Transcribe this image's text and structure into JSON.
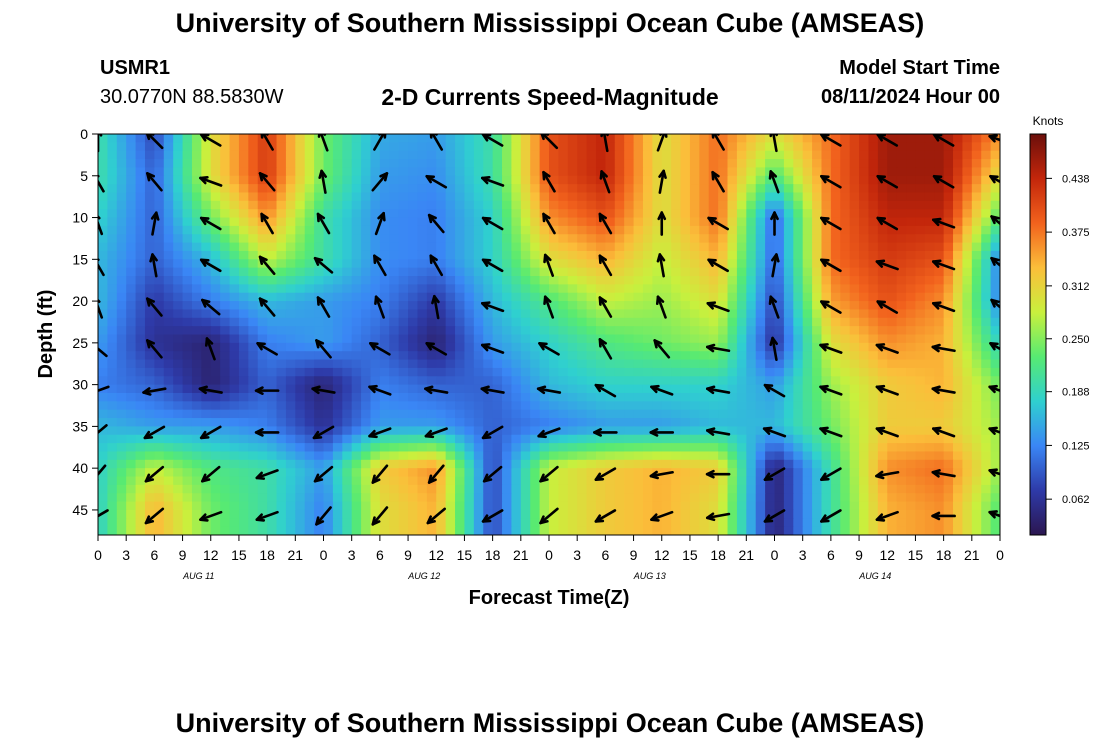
{
  "header": {
    "title": "University of Southern Mississippi Ocean Cube (AMSEAS)",
    "station_id": "USMR1",
    "station_coords": "30.0770N  88.5830W",
    "chart_subtitle": "2-D Currents Speed-Magnitude",
    "model_start_label": "Model Start Time",
    "model_start_value": "08/11/2024 Hour 00"
  },
  "footer": {
    "title": "University of Southern Mississippi Ocean Cube (AMSEAS)"
  },
  "colors": {
    "scale": [
      "#2b1650",
      "#2e3aa8",
      "#3a86f5",
      "#2fd0cf",
      "#57ea72",
      "#c9f03d",
      "#fbbe3a",
      "#f2621d",
      "#c3260b",
      "#6b0f0b"
    ],
    "arrow": "#000000"
  },
  "chart_data": {
    "type": "heatmap",
    "title": "2-D Currents Speed-Magnitude",
    "xlabel": "Forecast Time(Z)",
    "ylabel": "Depth (ft)",
    "ylim": [
      0,
      48
    ],
    "xlim_hours": [
      0,
      96
    ],
    "y_ticks": [
      0,
      5,
      10,
      15,
      20,
      25,
      30,
      35,
      40,
      45
    ],
    "x_tick_labels": [
      "0",
      "3",
      "6",
      "9",
      "12",
      "15",
      "18",
      "21",
      "0",
      "3",
      "6",
      "9",
      "12",
      "15",
      "18",
      "21",
      "0",
      "3",
      "6",
      "9",
      "12",
      "15",
      "18",
      "21",
      "0",
      "3",
      "6",
      "9",
      "12",
      "15",
      "18",
      "21",
      "0"
    ],
    "day_labels": [
      "AUG 11",
      "AUG 12",
      "AUG 13",
      "AUG 14"
    ],
    "colorbar": {
      "unit": "Knots",
      "ticks": [
        "0.438",
        "0.375",
        "0.312",
        "0.250",
        "0.188",
        "0.125",
        "0.062"
      ],
      "range": [
        0.02,
        0.49
      ]
    },
    "depths_ft": [
      0,
      5,
      10,
      15,
      20,
      25,
      30,
      35,
      40,
      45
    ],
    "times_hr": [
      0,
      6,
      12,
      18,
      24,
      30,
      36,
      42,
      48,
      54,
      60,
      66,
      72,
      78,
      84,
      90,
      96
    ],
    "speed_knots": [
      [
        0.2,
        0.08,
        0.3,
        0.42,
        0.24,
        0.15,
        0.14,
        0.2,
        0.4,
        0.44,
        0.3,
        0.38,
        0.3,
        0.38,
        0.46,
        0.46,
        0.36
      ],
      [
        0.2,
        0.1,
        0.3,
        0.42,
        0.24,
        0.14,
        0.13,
        0.2,
        0.4,
        0.44,
        0.3,
        0.38,
        0.22,
        0.38,
        0.46,
        0.46,
        0.3
      ],
      [
        0.18,
        0.1,
        0.24,
        0.36,
        0.2,
        0.13,
        0.12,
        0.18,
        0.36,
        0.4,
        0.3,
        0.38,
        0.1,
        0.38,
        0.44,
        0.44,
        0.22
      ],
      [
        0.16,
        0.1,
        0.16,
        0.28,
        0.2,
        0.13,
        0.12,
        0.18,
        0.3,
        0.34,
        0.28,
        0.34,
        0.1,
        0.38,
        0.42,
        0.4,
        0.12
      ],
      [
        0.16,
        0.07,
        0.12,
        0.16,
        0.14,
        0.12,
        0.07,
        0.16,
        0.22,
        0.28,
        0.26,
        0.3,
        0.08,
        0.35,
        0.4,
        0.36,
        0.12
      ],
      [
        0.14,
        0.06,
        0.04,
        0.12,
        0.14,
        0.1,
        0.04,
        0.14,
        0.18,
        0.22,
        0.24,
        0.26,
        0.06,
        0.3,
        0.36,
        0.34,
        0.18
      ],
      [
        0.12,
        0.1,
        0.04,
        0.1,
        0.04,
        0.12,
        0.1,
        0.1,
        0.16,
        0.18,
        0.18,
        0.18,
        0.14,
        0.26,
        0.32,
        0.34,
        0.24
      ],
      [
        0.16,
        0.14,
        0.14,
        0.12,
        0.06,
        0.14,
        0.14,
        0.1,
        0.12,
        0.14,
        0.14,
        0.16,
        0.16,
        0.24,
        0.32,
        0.32,
        0.26
      ],
      [
        0.18,
        0.28,
        0.22,
        0.2,
        0.14,
        0.32,
        0.36,
        0.08,
        0.28,
        0.32,
        0.34,
        0.32,
        0.04,
        0.2,
        0.36,
        0.38,
        0.26
      ],
      [
        0.18,
        0.34,
        0.24,
        0.2,
        0.12,
        0.3,
        0.34,
        0.08,
        0.28,
        0.32,
        0.34,
        0.3,
        0.04,
        0.2,
        0.34,
        0.36,
        0.22
      ]
    ],
    "direction_deg": [
      [
        0,
        315,
        300,
        330,
        340,
        30,
        330,
        300,
        315,
        350,
        20,
        330,
        350,
        300,
        300,
        300,
        290
      ],
      [
        330,
        320,
        290,
        320,
        350,
        40,
        300,
        290,
        330,
        340,
        10,
        330,
        340,
        300,
        300,
        300,
        300
      ],
      [
        340,
        10,
        300,
        330,
        330,
        20,
        320,
        300,
        330,
        330,
        0,
        300,
        0,
        300,
        300,
        290,
        310
      ],
      [
        330,
        350,
        300,
        320,
        310,
        330,
        330,
        300,
        340,
        330,
        350,
        300,
        10,
        300,
        290,
        290,
        310
      ],
      [
        340,
        320,
        310,
        320,
        330,
        340,
        350,
        290,
        340,
        330,
        340,
        290,
        340,
        300,
        300,
        290,
        310
      ],
      [
        310,
        320,
        340,
        300,
        320,
        300,
        300,
        290,
        300,
        330,
        320,
        280,
        350,
        290,
        290,
        280,
        300
      ],
      [
        250,
        260,
        280,
        270,
        280,
        290,
        280,
        280,
        280,
        300,
        290,
        280,
        300,
        290,
        290,
        280,
        290
      ],
      [
        230,
        240,
        240,
        270,
        240,
        250,
        250,
        240,
        250,
        270,
        270,
        280,
        290,
        290,
        290,
        290,
        290
      ],
      [
        220,
        230,
        230,
        250,
        230,
        220,
        220,
        230,
        230,
        240,
        260,
        270,
        240,
        240,
        260,
        280,
        290
      ],
      [
        240,
        230,
        250,
        250,
        220,
        220,
        230,
        240,
        230,
        240,
        250,
        260,
        240,
        240,
        250,
        270,
        290
      ]
    ]
  }
}
